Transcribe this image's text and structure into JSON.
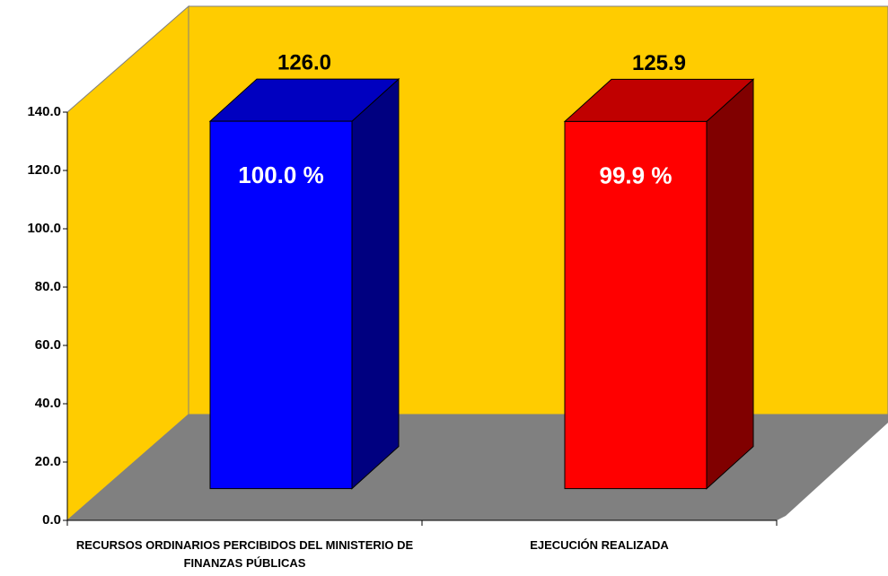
{
  "chart_data": {
    "type": "bar3d",
    "categories": [
      "RECURSOS ORDINARIOS PERCIBIDOS DEL MINISTERIO DE FINANZAS PÚBLICAS",
      "EJECUCIÓN REALIZADA"
    ],
    "series": [
      {
        "name": null,
        "colors": [
          "#0000ff",
          "#ff0000"
        ],
        "side_colors": [
          "#000080",
          "#800000"
        ],
        "top_colors": [
          "#0000c0",
          "#c00000"
        ],
        "values": [
          126.0,
          125.9
        ],
        "value_labels": [
          "126.0",
          "125.9"
        ]
      }
    ],
    "percent_labels": [
      "100.0 %",
      "99.9 %"
    ],
    "ylim": [
      0,
      140
    ],
    "yticks": [
      {
        "value": 0,
        "label": "0.0"
      },
      {
        "value": 20,
        "label": "20.0"
      },
      {
        "value": 40,
        "label": "40.0"
      },
      {
        "value": 60,
        "label": "60.0"
      },
      {
        "value": 80,
        "label": "80.0"
      },
      {
        "value": 100,
        "label": "100.0"
      },
      {
        "value": 120,
        "label": "120.0"
      },
      {
        "value": 140,
        "label": "140.0"
      }
    ],
    "wall_color": "#ffcc00",
    "floor_color": "#808080"
  }
}
